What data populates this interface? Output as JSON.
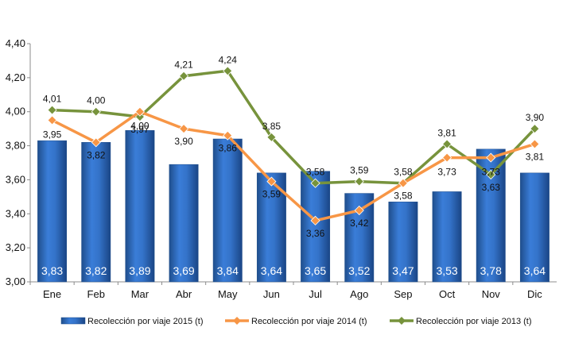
{
  "chart_data": {
    "type": "bar+line",
    "categories": [
      "Ene",
      "Feb",
      "Mar",
      "Abr",
      "May",
      "Jun",
      "Jul",
      "Ago",
      "Sep",
      "Oct",
      "Nov",
      "Dic"
    ],
    "ylim": [
      3.0,
      4.4
    ],
    "yticks": [
      "3,00",
      "3,20",
      "3,40",
      "3,60",
      "3,80",
      "4,00",
      "4,20",
      "4,40"
    ],
    "grid": false,
    "legend_position": "bottom",
    "series": [
      {
        "name": "Recolección por viaje 2015 (t)",
        "kind": "bar",
        "color": "#2E6FC6",
        "values": [
          3.83,
          3.82,
          3.89,
          3.69,
          3.84,
          3.64,
          3.65,
          3.52,
          3.47,
          3.53,
          3.78,
          3.64
        ],
        "labels": [
          "3,83",
          "3,82",
          "3,89",
          "3,69",
          "3,84",
          "3,64",
          "3,65",
          "3,52",
          "3,47",
          "3,53",
          "3,78",
          "3,64"
        ]
      },
      {
        "name": "Recolección por viaje 2014 (t)",
        "kind": "line",
        "color": "#F79646",
        "values": [
          3.95,
          3.82,
          4.0,
          3.9,
          3.86,
          3.59,
          3.36,
          3.42,
          3.58,
          3.73,
          3.73,
          3.81
        ],
        "labels": [
          "3,95",
          "3,82",
          "4,00",
          "3,90",
          "3,86",
          "3,59",
          "3,36",
          "3,42",
          "3,58",
          "3,73",
          "3,73",
          "3,81"
        ]
      },
      {
        "name": "Recolección por viaje 2013 (t)",
        "kind": "line",
        "color": "#77933C",
        "values": [
          4.01,
          4.0,
          3.97,
          4.21,
          4.24,
          3.85,
          3.58,
          3.59,
          3.58,
          3.81,
          3.63,
          3.9
        ],
        "labels": [
          "4,01",
          "4,00",
          "3,97",
          "4,21",
          "4,24",
          "3,85",
          "3,58",
          "3,59",
          "3,58",
          "3,81",
          "3,63",
          "3,90"
        ]
      }
    ]
  }
}
